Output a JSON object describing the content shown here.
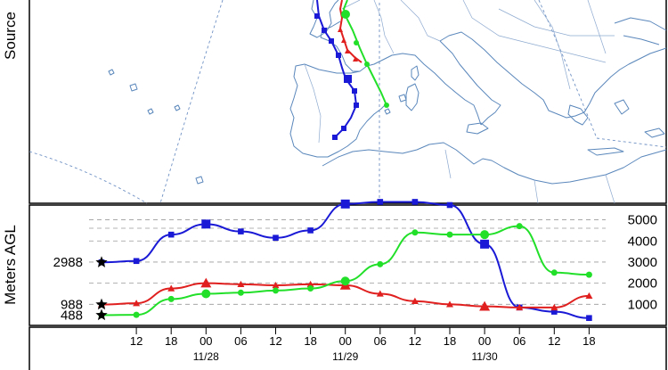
{
  "map_panel": {
    "side_label": "Source"
  },
  "chart_data": {
    "type": "line",
    "ylabel": "Meters AGL",
    "y_ticks": [
      "1000",
      "2000",
      "3000",
      "4000",
      "5000"
    ],
    "y_tick_values": [
      1000,
      2000,
      3000,
      4000,
      5000
    ],
    "ylim": [
      0,
      5700
    ],
    "hour_ticks": [
      "12",
      "18",
      "00",
      "06",
      "12",
      "18",
      "00",
      "06",
      "12",
      "18",
      "00",
      "06",
      "12",
      "18"
    ],
    "date_labels": [
      {
        "label": "11/28",
        "tick_index": 2
      },
      {
        "label": "11/29",
        "tick_index": 6
      },
      {
        "label": "11/30",
        "tick_index": 10
      }
    ],
    "start_heights": [
      "2988",
      "988",
      "488"
    ],
    "grid": "horizontal dashed",
    "series": [
      {
        "color": "#1a1ad6",
        "marker": "square",
        "values": [
          2988,
          3050,
          4300,
          4800,
          4450,
          4150,
          4500,
          5750,
          5850,
          5850,
          5700,
          3850,
          850,
          650,
          350
        ]
      },
      {
        "color": "#e01f1f",
        "marker": "triangle",
        "values": [
          988,
          1050,
          1750,
          2000,
          1950,
          1900,
          1950,
          1900,
          1500,
          1150,
          1000,
          900,
          850,
          850,
          1400
        ]
      },
      {
        "color": "#22e02a",
        "marker": "circle",
        "values": [
          488,
          500,
          1250,
          1500,
          1550,
          1650,
          1750,
          2100,
          2900,
          4400,
          4300,
          4300,
          4700,
          2500,
          2400
        ]
      }
    ]
  }
}
